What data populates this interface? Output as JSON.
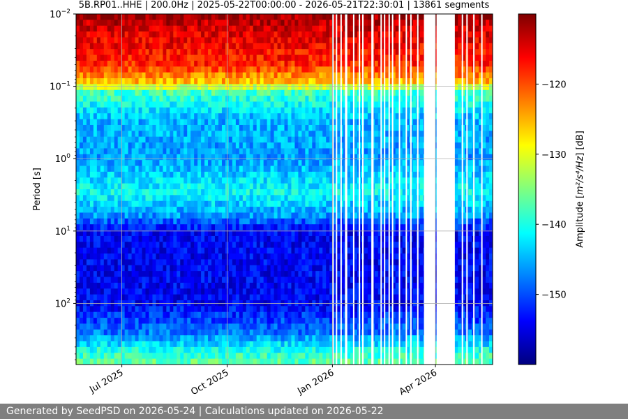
{
  "chart_data": {
    "type": "heatmap",
    "title": "5B.RP01..HHE | 200.0Hz | 2025-05-22T00:00:00 - 2026-05-21T22:30:01 | 13861 segments",
    "xlabel": "",
    "ylabel": "Period [s]",
    "x_range": [
      "2025-05-22",
      "2026-05-21"
    ],
    "x_ticks": [
      {
        "date": "2025-07-01",
        "label": "Jul 2025"
      },
      {
        "date": "2025-10-01",
        "label": "Oct 2025"
      },
      {
        "date": "2026-01-01",
        "label": "Jan 2026"
      },
      {
        "date": "2026-04-01",
        "label": "Apr 2026"
      }
    ],
    "y_scale": "log",
    "y_inverted": true,
    "y_range": [
      0.01,
      700
    ],
    "y_ticks": [
      {
        "value": 0.01,
        "base": "10",
        "exp": "−2"
      },
      {
        "value": 0.1,
        "base": "10",
        "exp": "−1"
      },
      {
        "value": 1,
        "base": "10",
        "exp": "0"
      },
      {
        "value": 10,
        "base": "10",
        "exp": "1"
      },
      {
        "value": 100,
        "base": "10",
        "exp": "2"
      }
    ],
    "grid": true,
    "colorbar": {
      "label_prefix": "Amplitude [",
      "label_math": "m²/s⁴/Hz",
      "label_suffix": "] [dB]",
      "range": [
        -160,
        -110
      ],
      "ticks": [
        {
          "value": -120,
          "label": "−120"
        },
        {
          "value": -130,
          "label": "−130"
        },
        {
          "value": -140,
          "label": "−140"
        },
        {
          "value": -150,
          "label": "−150"
        }
      ],
      "colormap": "jet"
    },
    "amplitude_profile": [
      {
        "period": 0.01,
        "db": -111
      },
      {
        "period": 0.015,
        "db": -114
      },
      {
        "period": 0.05,
        "db": -118
      },
      {
        "period": 0.09,
        "db": -126
      },
      {
        "period": 0.12,
        "db": -138
      },
      {
        "period": 0.3,
        "db": -145
      },
      {
        "period": 1,
        "db": -146
      },
      {
        "period": 3,
        "db": -141
      },
      {
        "period": 6,
        "db": -146
      },
      {
        "period": 10,
        "db": -154
      },
      {
        "period": 100,
        "db": -154
      },
      {
        "period": 250,
        "db": -148
      },
      {
        "period": 450,
        "db": -140
      },
      {
        "period": 700,
        "db": -136
      }
    ],
    "data_gaps": [
      [
        "2026-01-01",
        "2026-01-02"
      ],
      [
        "2026-01-04",
        "2026-01-05"
      ],
      [
        "2026-01-08",
        "2026-01-09"
      ],
      [
        "2026-01-12",
        "2026-01-14"
      ],
      [
        "2026-01-19",
        "2026-01-20"
      ],
      [
        "2026-01-24",
        "2026-01-25"
      ],
      [
        "2026-01-27",
        "2026-01-28"
      ],
      [
        "2026-02-04",
        "2026-02-06"
      ],
      [
        "2026-02-12",
        "2026-02-13"
      ],
      [
        "2026-02-15",
        "2026-02-16"
      ],
      [
        "2026-02-19",
        "2026-02-20"
      ],
      [
        "2026-02-22",
        "2026-02-23"
      ],
      [
        "2026-02-28",
        "2026-03-01"
      ],
      [
        "2026-03-06",
        "2026-03-07"
      ],
      [
        "2026-03-10",
        "2026-03-11"
      ],
      [
        "2026-03-16",
        "2026-03-17"
      ],
      [
        "2026-03-22",
        "2026-04-01"
      ],
      [
        "2026-04-02",
        "2026-04-18"
      ],
      [
        "2026-04-24",
        "2026-04-25"
      ],
      [
        "2026-04-28",
        "2026-04-29"
      ],
      [
        "2026-05-04",
        "2026-05-05"
      ],
      [
        "2026-05-11",
        "2026-05-12"
      ]
    ]
  },
  "footer": {
    "text": "Generated by SeedPSD on 2026-05-24 | Calculations updated on 2026-05-22"
  }
}
